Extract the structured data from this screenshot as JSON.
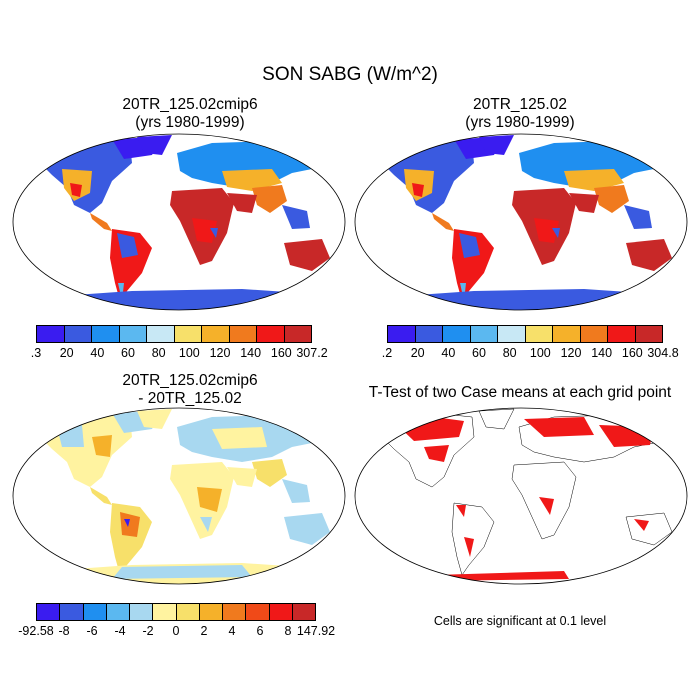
{
  "title": "SON SABG (W/m^2)",
  "panels": [
    {
      "title_line1": "20TR_125.02cmip6",
      "title_line2": "(yrs 1980-1999)",
      "colorbar": {
        "labels": [
          ".3",
          "20",
          "40",
          "60",
          "80",
          "100",
          "120",
          "140",
          "160",
          "307.2"
        ],
        "colors": [
          "#3a1cf0",
          "#3a5ae0",
          "#1f8ff0",
          "#5bb8f0",
          "#c8e8f5",
          "#f7e06a",
          "#f5b12a",
          "#f07a1e",
          "#f01818",
          "#c82828"
        ]
      }
    },
    {
      "title_line1": "20TR_125.02",
      "title_line2": "(yrs 1980-1999)",
      "colorbar": {
        "labels": [
          ".2",
          "20",
          "40",
          "60",
          "80",
          "100",
          "120",
          "140",
          "160",
          "304.8"
        ],
        "colors": [
          "#3a1cf0",
          "#3a5ae0",
          "#1f8ff0",
          "#5bb8f0",
          "#c8e8f5",
          "#f7e06a",
          "#f5b12a",
          "#f07a1e",
          "#f01818",
          "#c82828"
        ]
      }
    },
    {
      "title_line1": "20TR_125.02cmip6",
      "title_line2": "- 20TR_125.02",
      "colorbar": {
        "labels": [
          "-92.58",
          "-8",
          "-6",
          "-4",
          "-2",
          "0",
          "2",
          "4",
          "6",
          "8",
          "147.92"
        ],
        "colors": [
          "#3a1cf0",
          "#3a5ae0",
          "#1f8ff0",
          "#5bb8f0",
          "#a8d8f0",
          "#fff3a0",
          "#f7e06a",
          "#f5b12a",
          "#f07a1e",
          "#f04a18",
          "#f01818",
          "#c82828"
        ]
      }
    },
    {
      "title_line1": "T-Test of two Case means at each grid point",
      "note": "Cells are significant at 0.1 level"
    }
  ]
}
